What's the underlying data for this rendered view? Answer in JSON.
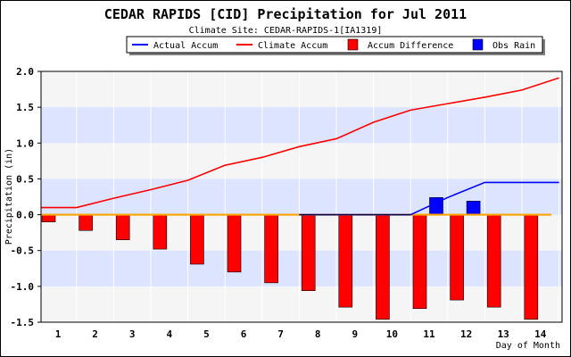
{
  "chart_data": {
    "type": "bar",
    "title": "CEDAR RAPIDS [CID] Precipitation for Jul 2011",
    "subtitle": "Climate Site: CEDAR-RAPIDS-1[IA1319]",
    "xlabel": "Day of Month",
    "ylabel": "Precipitation (in)",
    "ylim": [
      -1.5,
      2.0
    ],
    "yticks": [
      "2.0",
      "1.5",
      "1.0",
      "0.5",
      "0.0",
      "-0.5",
      "-1.0",
      "-1.5"
    ],
    "categories": [
      "1",
      "2",
      "3",
      "4",
      "5",
      "6",
      "7",
      "8",
      "9",
      "10",
      "11",
      "12",
      "13",
      "14"
    ],
    "legend_position": "top",
    "grid": true,
    "series": [
      {
        "name": "Actual Accum",
        "kind": "line",
        "color": "#0000ff",
        "values": [
          0.0,
          0.0,
          0.0,
          0.0,
          0.0,
          0.0,
          0.0,
          0.0,
          0.0,
          0.0,
          0.24,
          0.45,
          0.45,
          0.45
        ]
      },
      {
        "name": "Climate Accum",
        "kind": "line",
        "color": "#ff0000",
        "values": [
          0.1,
          0.23,
          0.35,
          0.48,
          0.69,
          0.8,
          0.95,
          1.06,
          1.29,
          1.46,
          1.55,
          1.64,
          1.74,
          1.91
        ]
      },
      {
        "name": "Accum Difference",
        "kind": "bar",
        "color": "#ff0000",
        "values": [
          -0.1,
          -0.22,
          -0.35,
          -0.48,
          -0.69,
          -0.8,
          -0.95,
          -1.06,
          -1.29,
          -1.46,
          -1.31,
          -1.19,
          -1.29,
          -1.46
        ]
      },
      {
        "name": "Obs Rain",
        "kind": "bar",
        "color": "#0000ff",
        "values": [
          0.0,
          0.0,
          0.0,
          0.0,
          0.0,
          0.0,
          0.0,
          0.0,
          0.0,
          0.0,
          0.24,
          0.19,
          0.0,
          0.0
        ]
      }
    ]
  }
}
